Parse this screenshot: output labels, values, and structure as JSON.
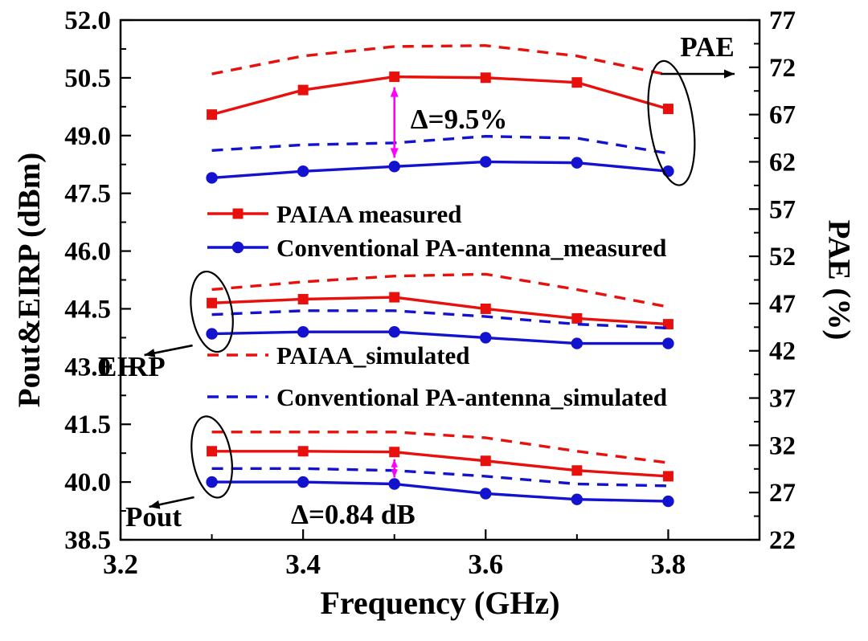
{
  "figure": {
    "type": "scientific-line-chart",
    "background": "#ffffff"
  },
  "colors": {
    "red": "#e8100c",
    "blue": "#1212cf",
    "magenta": "#ff00ff",
    "black": "#000000"
  },
  "chart_data": {
    "type": "line",
    "x": [
      3.3,
      3.4,
      3.5,
      3.6,
      3.7,
      3.8
    ],
    "x_axis": {
      "label": "Frequency (GHz)",
      "range": [
        3.2,
        3.9
      ],
      "major_ticks": [
        3.2,
        3.4,
        3.6,
        3.8
      ],
      "minor_ticks": [
        3.3,
        3.5,
        3.7
      ]
    },
    "y_left": {
      "label": "Pout&EIRP (dBm)",
      "range": [
        38.5,
        52.0
      ],
      "major_step": 1.5,
      "major_ticks": [
        38.5,
        40.0,
        41.5,
        43.0,
        44.5,
        46.0,
        47.5,
        49.0,
        50.5,
        52.0
      ]
    },
    "y_right": {
      "label": "PAE (%)",
      "range": [
        22,
        77
      ],
      "major_step": 5,
      "major_ticks": [
        22,
        27,
        32,
        37,
        42,
        47,
        52,
        57,
        62,
        67,
        72,
        77
      ]
    },
    "series": [
      {
        "id": "pae-paiaa-sim",
        "group": "PAE",
        "name": "PAIAA_simulated",
        "axis": "right",
        "color": "red",
        "style": "dashed",
        "marker": "none",
        "values": [
          71.3,
          73.2,
          74.2,
          74.3,
          73.2,
          71.2
        ]
      },
      {
        "id": "pae-paiaa-meas",
        "group": "PAE",
        "name": "PAIAA measured",
        "axis": "right",
        "color": "red",
        "style": "solid",
        "marker": "square",
        "values": [
          67.0,
          69.6,
          71.0,
          70.9,
          70.4,
          67.6
        ]
      },
      {
        "id": "pae-conv-sim",
        "group": "PAE",
        "name": "Conventional PA-antenna_simulated",
        "axis": "right",
        "color": "blue",
        "style": "dashed",
        "marker": "none",
        "values": [
          63.2,
          63.8,
          64.0,
          64.7,
          64.5,
          62.9
        ]
      },
      {
        "id": "pae-conv-meas",
        "group": "PAE",
        "name": "Conventional PA-antenna_measured",
        "axis": "right",
        "color": "blue",
        "style": "solid",
        "marker": "circle",
        "values": [
          60.3,
          61.0,
          61.5,
          62.0,
          61.9,
          61.0
        ]
      },
      {
        "id": "eirp-paiaa-sim",
        "group": "EIRP",
        "name": "PAIAA_simulated",
        "axis": "left",
        "color": "red",
        "style": "dashed",
        "marker": "none",
        "values": [
          45.0,
          45.2,
          45.35,
          45.4,
          45.0,
          44.55
        ]
      },
      {
        "id": "eirp-paiaa-meas",
        "group": "EIRP",
        "name": "PAIAA measured",
        "axis": "left",
        "color": "red",
        "style": "solid",
        "marker": "square",
        "values": [
          44.65,
          44.75,
          44.8,
          44.5,
          44.25,
          44.1
        ]
      },
      {
        "id": "eirp-conv-sim",
        "group": "EIRP",
        "name": "Conventional PA-antenna_simulated",
        "axis": "left",
        "color": "blue",
        "style": "dashed",
        "marker": "none",
        "values": [
          44.35,
          44.45,
          44.45,
          44.3,
          44.1,
          44.0
        ]
      },
      {
        "id": "eirp-conv-meas",
        "group": "EIRP",
        "name": "Conventional PA-antenna_measured",
        "axis": "left",
        "color": "blue",
        "style": "solid",
        "marker": "circle",
        "values": [
          43.85,
          43.9,
          43.9,
          43.75,
          43.6,
          43.6
        ]
      },
      {
        "id": "pout-paiaa-sim",
        "group": "Pout",
        "name": "PAIAA_simulated",
        "axis": "left",
        "color": "red",
        "style": "dashed",
        "marker": "none",
        "values": [
          41.3,
          41.3,
          41.3,
          41.15,
          40.8,
          40.5
        ]
      },
      {
        "id": "pout-paiaa-meas",
        "group": "Pout",
        "name": "PAIAA measured",
        "axis": "left",
        "color": "red",
        "style": "solid",
        "marker": "square",
        "values": [
          40.8,
          40.8,
          40.78,
          40.55,
          40.3,
          40.15
        ]
      },
      {
        "id": "pout-conv-sim",
        "group": "Pout",
        "name": "Conventional PA-antenna_simulated",
        "axis": "left",
        "color": "blue",
        "style": "dashed",
        "marker": "none",
        "values": [
          40.35,
          40.35,
          40.3,
          40.15,
          39.95,
          39.9
        ]
      },
      {
        "id": "pout-conv-meas",
        "group": "Pout",
        "name": "Conventional PA-antenna_measured",
        "axis": "left",
        "color": "blue",
        "style": "solid",
        "marker": "circle",
        "values": [
          40.0,
          40.0,
          39.95,
          39.7,
          39.55,
          39.5
        ]
      }
    ],
    "annotations": {
      "delta_pae": "Δ=9.5%",
      "delta_pout": "Δ=0.84 dB",
      "group_pae": "PAE",
      "group_eirp": "EIRP",
      "group_pout": "Pout"
    }
  },
  "legend": [
    {
      "label": "PAIAA measured",
      "color": "red",
      "style": "solid",
      "marker": "square"
    },
    {
      "label": "Conventional PA-antenna_measured",
      "color": "blue",
      "style": "solid",
      "marker": "circle"
    },
    {
      "label": "PAIAA_simulated",
      "color": "red",
      "style": "dashed",
      "marker": "none"
    },
    {
      "label": "Conventional PA-antenna_simulated",
      "color": "blue",
      "style": "dashed",
      "marker": "none"
    }
  ]
}
